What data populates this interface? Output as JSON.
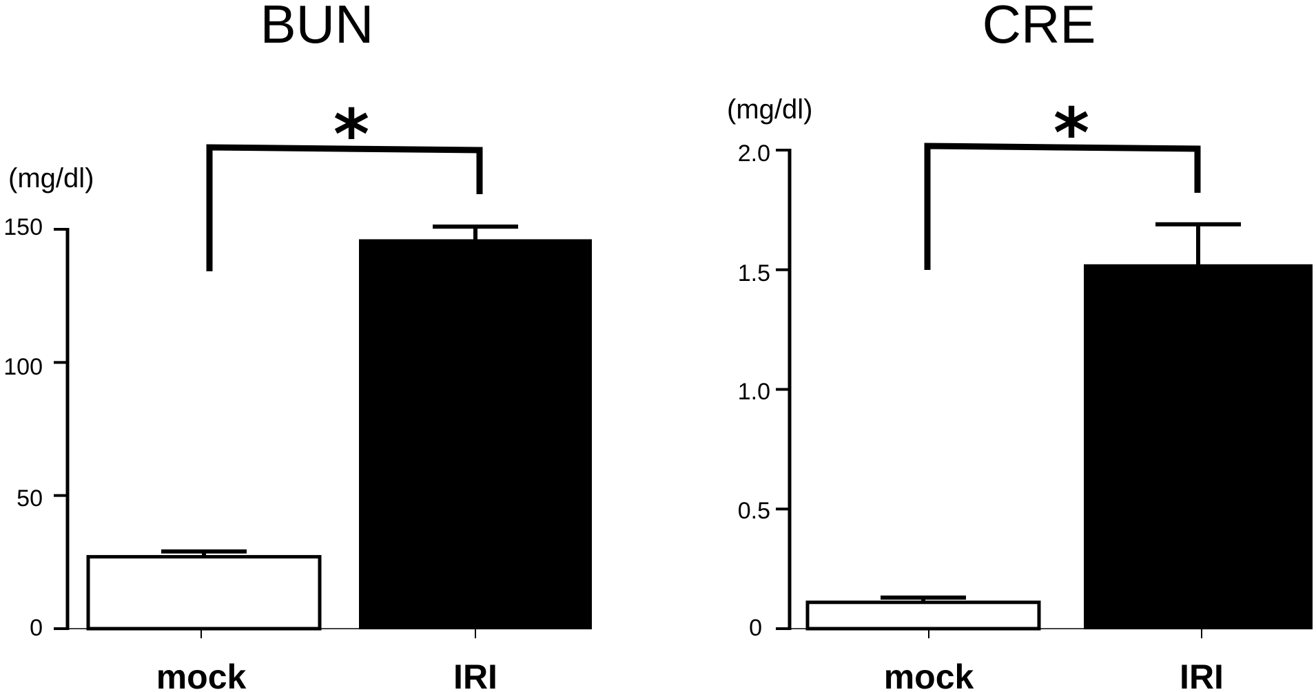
{
  "chart_data": [
    {
      "type": "bar",
      "title": "BUN",
      "ylabel": "(mg/dl)",
      "ylim": [
        0,
        150
      ],
      "yticks": [
        "0",
        "50",
        "100",
        "150"
      ],
      "categories": [
        "mock",
        "IRI"
      ],
      "values": [
        27,
        146
      ],
      "errors": [
        2,
        5
      ],
      "colors": [
        "#ffffff",
        "#000000"
      ],
      "significance": "*"
    },
    {
      "type": "bar",
      "title": "CRE",
      "ylabel": "(mg/dl)",
      "ylim": [
        0,
        2.0
      ],
      "yticks": [
        "0",
        "0.5",
        "1.0",
        "1.5",
        "2.0"
      ],
      "categories": [
        "mock",
        "IRI"
      ],
      "values": [
        0.11,
        1.52
      ],
      "errors": [
        0.02,
        0.17
      ],
      "colors": [
        "#ffffff",
        "#000000"
      ],
      "significance": "*"
    }
  ]
}
